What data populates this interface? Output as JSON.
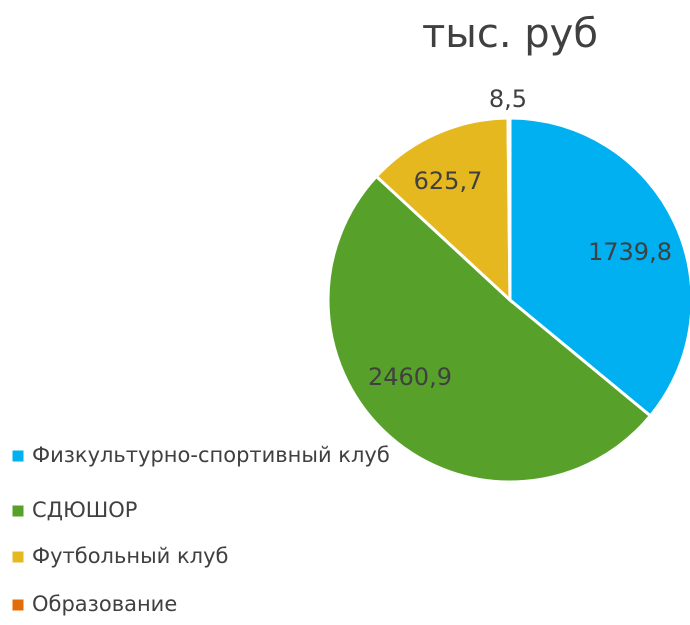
{
  "chart_data": {
    "type": "pie",
    "title": "тыс. руб",
    "categories": [
      "Физкультурно-спортивный клуб",
      "СДЮШОР",
      "Футбольный клуб",
      "Образование"
    ],
    "values": [
      1739.8,
      2460.9,
      625.7,
      8.5
    ],
    "value_labels": [
      "1739,8",
      "2460,9",
      "625,7",
      "8,5"
    ],
    "colors": [
      "#00b0f0",
      "#57a12b",
      "#e6b820",
      "#e36c0a"
    ]
  }
}
